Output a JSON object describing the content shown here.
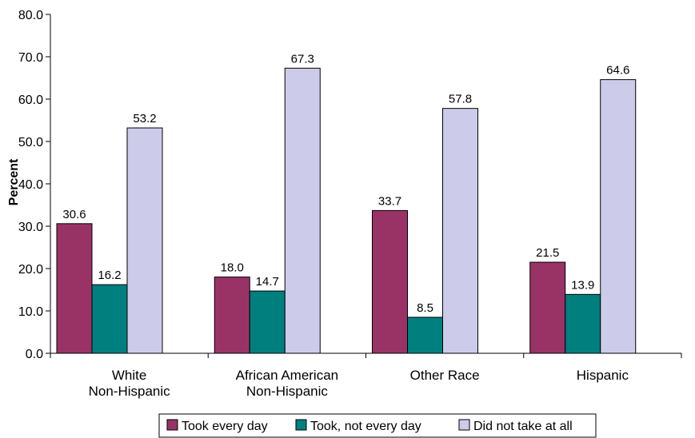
{
  "chart_data": {
    "type": "bar",
    "title": "",
    "xlabel": "",
    "ylabel": "Percent",
    "ylim": [
      0,
      80
    ],
    "yticks": [
      "0.0",
      "10.0",
      "20.0",
      "30.0",
      "40.0",
      "50.0",
      "60.0",
      "70.0",
      "80.0"
    ],
    "categories": [
      [
        "White",
        "Non-Hispanic"
      ],
      [
        "African American",
        "Non-Hispanic"
      ],
      [
        "Other Race"
      ],
      [
        "Hispanic"
      ]
    ],
    "series": [
      {
        "name": "Took every day",
        "color": "#993366",
        "values": [
          30.6,
          18.0,
          33.7,
          21.5
        ],
        "labels": [
          "30.6",
          "18.0",
          "33.7",
          "21.5"
        ]
      },
      {
        "name": "Took, not every day",
        "color": "#007f7f",
        "values": [
          16.2,
          14.7,
          8.5,
          13.9
        ],
        "labels": [
          "16.2",
          "14.7",
          "8.5",
          "13.9"
        ]
      },
      {
        "name": "Did not take at all",
        "color": "#ccccea",
        "values": [
          53.2,
          67.3,
          57.8,
          64.6
        ],
        "labels": [
          "53.2",
          "67.3",
          "57.8",
          "64.6"
        ]
      }
    ],
    "grid": false,
    "legend_position": "bottom"
  }
}
